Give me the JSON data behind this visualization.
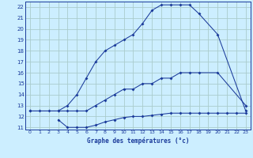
{
  "xlabel": "Graphe des températures (°c)",
  "bg_color": "#cceeff",
  "grid_color": "#aacccc",
  "line_color": "#1a3a9a",
  "xlim": [
    -0.5,
    23.5
  ],
  "ylim": [
    10.8,
    22.5
  ],
  "xticks": [
    0,
    1,
    2,
    3,
    4,
    5,
    6,
    7,
    8,
    9,
    10,
    11,
    12,
    13,
    14,
    15,
    16,
    17,
    18,
    19,
    20,
    21,
    22,
    23
  ],
  "yticks": [
    11,
    12,
    13,
    14,
    15,
    16,
    17,
    18,
    19,
    20,
    21,
    22
  ],
  "line1_x": [
    0,
    1,
    2,
    3,
    4,
    5,
    6,
    7,
    8,
    9,
    10,
    11,
    12,
    13,
    14,
    15,
    16,
    17,
    18,
    20,
    23
  ],
  "line1_y": [
    12.5,
    12.5,
    12.5,
    12.5,
    13.0,
    14.0,
    15.5,
    17.0,
    18.0,
    18.5,
    19.0,
    19.5,
    20.5,
    21.7,
    22.2,
    22.2,
    22.2,
    22.2,
    21.4,
    19.5,
    12.5
  ],
  "line2_x": [
    0,
    3,
    4,
    5,
    6,
    7,
    8,
    9,
    10,
    11,
    12,
    13,
    14,
    15,
    16,
    17,
    18,
    20,
    23
  ],
  "line2_y": [
    12.5,
    12.5,
    12.5,
    12.5,
    12.5,
    13.0,
    13.5,
    14.0,
    14.5,
    14.5,
    15.0,
    15.0,
    15.5,
    15.5,
    16.0,
    16.0,
    16.0,
    16.0,
    13.0
  ],
  "line3_x": [
    3,
    4,
    5,
    6,
    7,
    8,
    9,
    10,
    11,
    12,
    13,
    14,
    15,
    16,
    17,
    18,
    19,
    20,
    21,
    22,
    23
  ],
  "line3_y": [
    11.7,
    11.0,
    11.0,
    11.0,
    11.2,
    11.5,
    11.7,
    11.9,
    12.0,
    12.0,
    12.1,
    12.2,
    12.3,
    12.3,
    12.3,
    12.3,
    12.3,
    12.3,
    12.3,
    12.3,
    12.3
  ]
}
